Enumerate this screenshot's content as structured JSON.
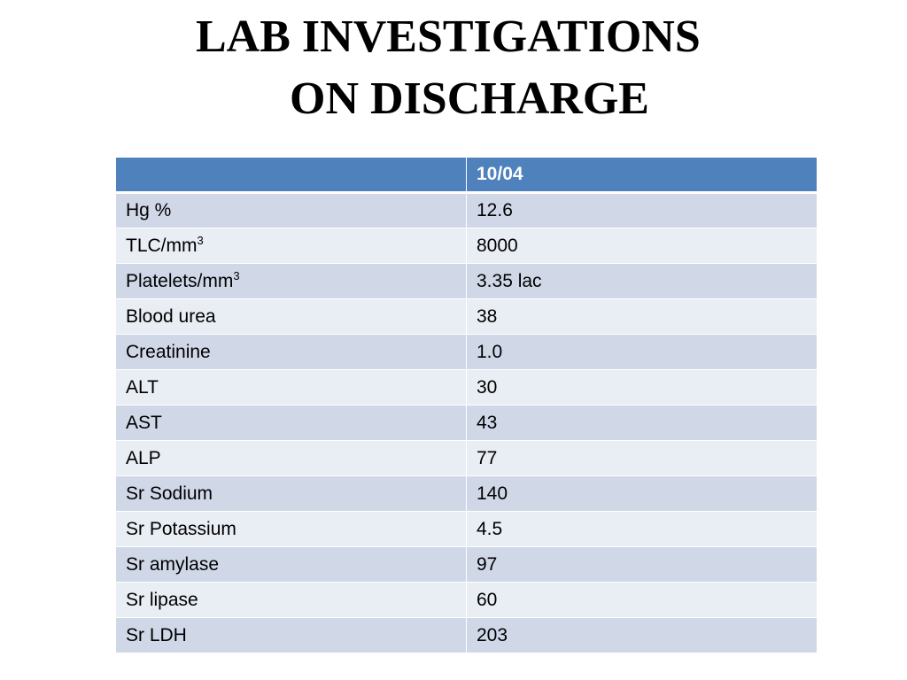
{
  "title": {
    "line1": "LAB INVESTIGATIONS",
    "line2": "ON DISCHARGE"
  },
  "table": {
    "header": {
      "label": "",
      "date": "10/04"
    },
    "rows": [
      {
        "name": "Hg %",
        "sup": "",
        "value": "12.6"
      },
      {
        "name": "TLC/mm",
        "sup": "3",
        "value": "8000"
      },
      {
        "name": "Platelets/mm",
        "sup": "3",
        "value": "3.35 lac"
      },
      {
        "name": "Blood urea",
        "sup": "",
        "value": "38"
      },
      {
        "name": "Creatinine",
        "sup": "",
        "value": "1.0"
      },
      {
        "name": "ALT",
        "sup": "",
        "value": "30"
      },
      {
        "name": "AST",
        "sup": "",
        "value": "43"
      },
      {
        "name": "ALP",
        "sup": "",
        "value": "77"
      },
      {
        "name": "Sr Sodium",
        "sup": "",
        "value": "140"
      },
      {
        "name": "Sr Potassium",
        "sup": "",
        "value": "4.5"
      },
      {
        "name": "Sr amylase",
        "sup": "",
        "value": "97"
      },
      {
        "name": "Sr lipase",
        "sup": "",
        "value": "60"
      },
      {
        "name": "Sr LDH",
        "sup": "",
        "value": "203"
      }
    ]
  }
}
